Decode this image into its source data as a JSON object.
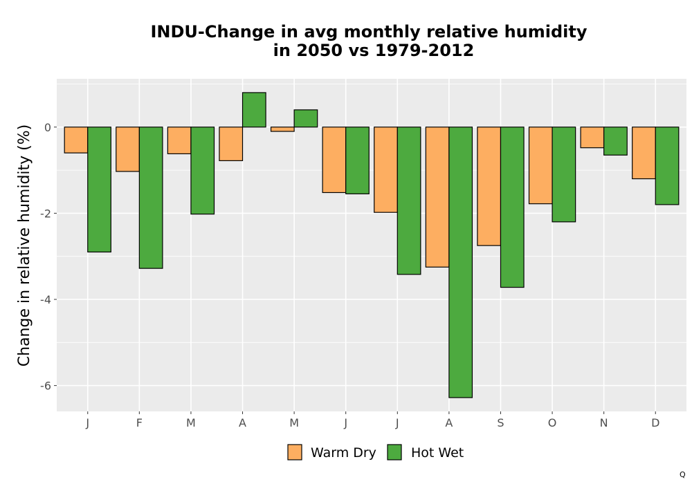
{
  "chart_data": {
    "type": "bar",
    "title_lines": [
      "INDU-Change in avg monthly relative humidity",
      "in 2050 vs 1979-2012"
    ],
    "xlabel": "",
    "ylabel": "Change in relative humidity (%)",
    "categories": [
      "J",
      "F",
      "M",
      "A",
      "M",
      "J",
      "J",
      "A",
      "S",
      "O",
      "N",
      "D"
    ],
    "series": [
      {
        "name": "Warm Dry",
        "color": "#fdae61",
        "values": [
          -0.6,
          -1.03,
          -0.62,
          -0.78,
          -0.1,
          -1.52,
          -1.98,
          -3.25,
          -2.75,
          -1.78,
          -0.48,
          -1.2
        ]
      },
      {
        "name": "Hot Wet",
        "color": "#4daa3f",
        "values": [
          -2.9,
          -3.28,
          -2.02,
          0.8,
          0.4,
          -1.55,
          -3.42,
          -6.28,
          -3.72,
          -2.2,
          -0.65,
          -1.8
        ]
      }
    ],
    "ylim": [
      -6.6,
      1.12
    ],
    "yticks": [
      -6,
      -4,
      -2,
      0
    ],
    "ytick_labels": [
      "-6",
      "-4",
      "-2",
      "0"
    ],
    "grid": true,
    "legend_position": "bottom",
    "panel_background": "#ebebeb",
    "bar_outline": "#000000"
  },
  "corner_text": "Q"
}
